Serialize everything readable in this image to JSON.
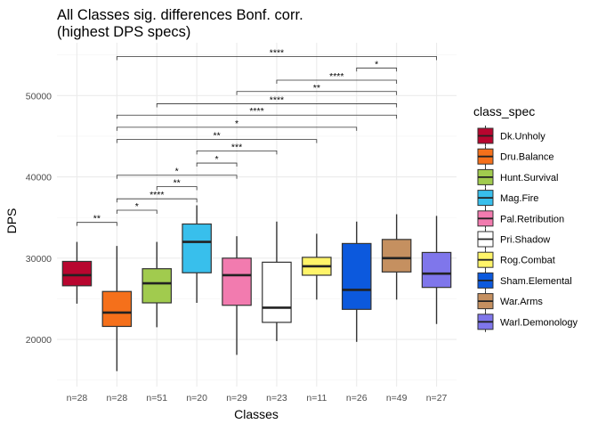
{
  "chart_data": {
    "type": "box",
    "title_lines": [
      "All Classes sig. differences Bonf. corr.",
      "(highest DPS specs)"
    ],
    "xlabel": "Classes",
    "ylabel": "DPS",
    "ylim": [
      14200,
      56500
    ],
    "yticks": [
      20000,
      30000,
      40000,
      50000
    ],
    "ytick_labels": [
      "20000",
      "30000",
      "40000",
      "50000"
    ],
    "grid": true,
    "legend": {
      "title": "class_spec",
      "position": "right"
    },
    "categories": [
      "n=28",
      "n=28",
      "n=51",
      "n=20",
      "n=29",
      "n=23",
      "n=11",
      "n=26",
      "n=49",
      "n=27"
    ],
    "boxes": [
      {
        "name": "Dk.Unholy",
        "color": "#B8062F",
        "min": 24400,
        "q1": 26600,
        "median": 27900,
        "q3": 29600,
        "max": 32000
      },
      {
        "name": "Dru.Balance",
        "color": "#F5701B",
        "min": 16100,
        "q1": 21600,
        "median": 23300,
        "q3": 25900,
        "max": 31500
      },
      {
        "name": "Hunt.Survival",
        "color": "#A1CB4E",
        "min": 21500,
        "q1": 24500,
        "median": 26900,
        "q3": 28700,
        "max": 32000
      },
      {
        "name": "Mag.Fire",
        "color": "#38BFEC",
        "min": 24500,
        "q1": 28200,
        "median": 32000,
        "q3": 34200,
        "max": 36500
      },
      {
        "name": "Pal.Retribution",
        "color": "#F27BAF",
        "min": 18100,
        "q1": 24200,
        "median": 27900,
        "q3": 30000,
        "max": 32700
      },
      {
        "name": "Pri.Shadow",
        "color": "#FFFFFF",
        "min": 19800,
        "q1": 22100,
        "median": 23900,
        "q3": 29500,
        "max": 34500
      },
      {
        "name": "Rog.Combat",
        "color": "#FFF469",
        "min": 24900,
        "q1": 27900,
        "median": 29000,
        "q3": 30100,
        "max": 33000
      },
      {
        "name": "Sham.Elemental",
        "color": "#0C59DD",
        "min": 19700,
        "q1": 23700,
        "median": 26100,
        "q3": 31800,
        "max": 34500
      },
      {
        "name": "War.Arms",
        "color": "#C59060",
        "min": 24900,
        "q1": 28300,
        "median": 30000,
        "q3": 32300,
        "max": 35400
      },
      {
        "name": "Warl.Demonology",
        "color": "#7F76EB",
        "min": 21900,
        "q1": 26400,
        "median": 28100,
        "q3": 30700,
        "max": 35200
      }
    ],
    "significance": [
      {
        "from": 2,
        "to": 10,
        "y": 54800,
        "label": "****"
      },
      {
        "from": 8,
        "to": 9,
        "y": 53400,
        "label": "*"
      },
      {
        "from": 6,
        "to": 9,
        "y": 51900,
        "label": "****"
      },
      {
        "from": 5,
        "to": 9,
        "y": 50500,
        "label": "**"
      },
      {
        "from": 3,
        "to": 9,
        "y": 49000,
        "label": "****"
      },
      {
        "from": 2,
        "to": 9,
        "y": 47600,
        "label": "****"
      },
      {
        "from": 2,
        "to": 8,
        "y": 46100,
        "label": "*"
      },
      {
        "from": 2,
        "to": 7,
        "y": 44600,
        "label": "**"
      },
      {
        "from": 4,
        "to": 6,
        "y": 43200,
        "label": "***"
      },
      {
        "from": 4,
        "to": 5,
        "y": 41700,
        "label": "*"
      },
      {
        "from": 2,
        "to": 5,
        "y": 40200,
        "label": "*"
      },
      {
        "from": 3,
        "to": 4,
        "y": 38800,
        "label": "**"
      },
      {
        "from": 2,
        "to": 4,
        "y": 37300,
        "label": "****"
      },
      {
        "from": 2,
        "to": 3,
        "y": 35900,
        "label": "*"
      },
      {
        "from": 1,
        "to": 2,
        "y": 34400,
        "label": "**"
      }
    ]
  }
}
